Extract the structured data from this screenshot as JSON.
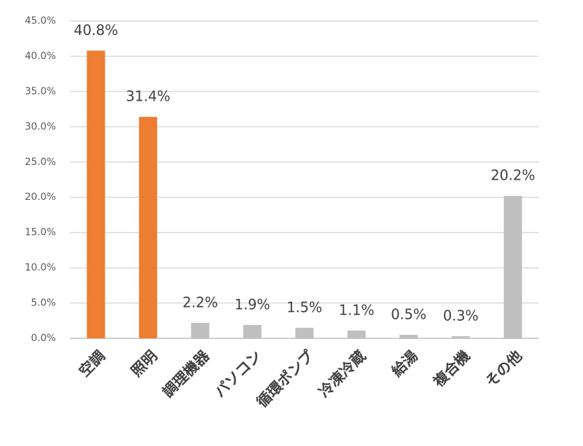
{
  "chart_data": {
    "type": "bar",
    "categories": [
      "空調",
      "照明",
      "調理機器",
      "パソコン",
      "循環ポンプ",
      "冷凍冷蔵",
      "給湯",
      "複合機",
      "その他"
    ],
    "values": [
      40.8,
      31.4,
      2.2,
      1.9,
      1.5,
      1.1,
      0.5,
      0.3,
      20.2
    ],
    "value_labels": [
      "40.8%",
      "31.4%",
      "2.2%",
      "1.9%",
      "1.5%",
      "1.1%",
      "0.5%",
      "0.3%",
      "20.2%"
    ],
    "colors": [
      "#ed7d31",
      "#ed7d31",
      "#bfbfbf",
      "#bfbfbf",
      "#bfbfbf",
      "#bfbfbf",
      "#bfbfbf",
      "#bfbfbf",
      "#bfbfbf"
    ],
    "ylim": [
      0,
      45
    ],
    "yticks": [
      {
        "value": 0,
        "label": "0.0%"
      },
      {
        "value": 5,
        "label": "5.0%"
      },
      {
        "value": 10,
        "label": "10.0%"
      },
      {
        "value": 15,
        "label": "15.0%"
      },
      {
        "value": 20,
        "label": "20.0%"
      },
      {
        "value": 25,
        "label": "25.0%"
      },
      {
        "value": 30,
        "label": "30.0%"
      },
      {
        "value": 35,
        "label": "35.0%"
      },
      {
        "value": 40,
        "label": "40.0%"
      },
      {
        "value": 45,
        "label": "45.0%"
      }
    ],
    "grid": true
  }
}
